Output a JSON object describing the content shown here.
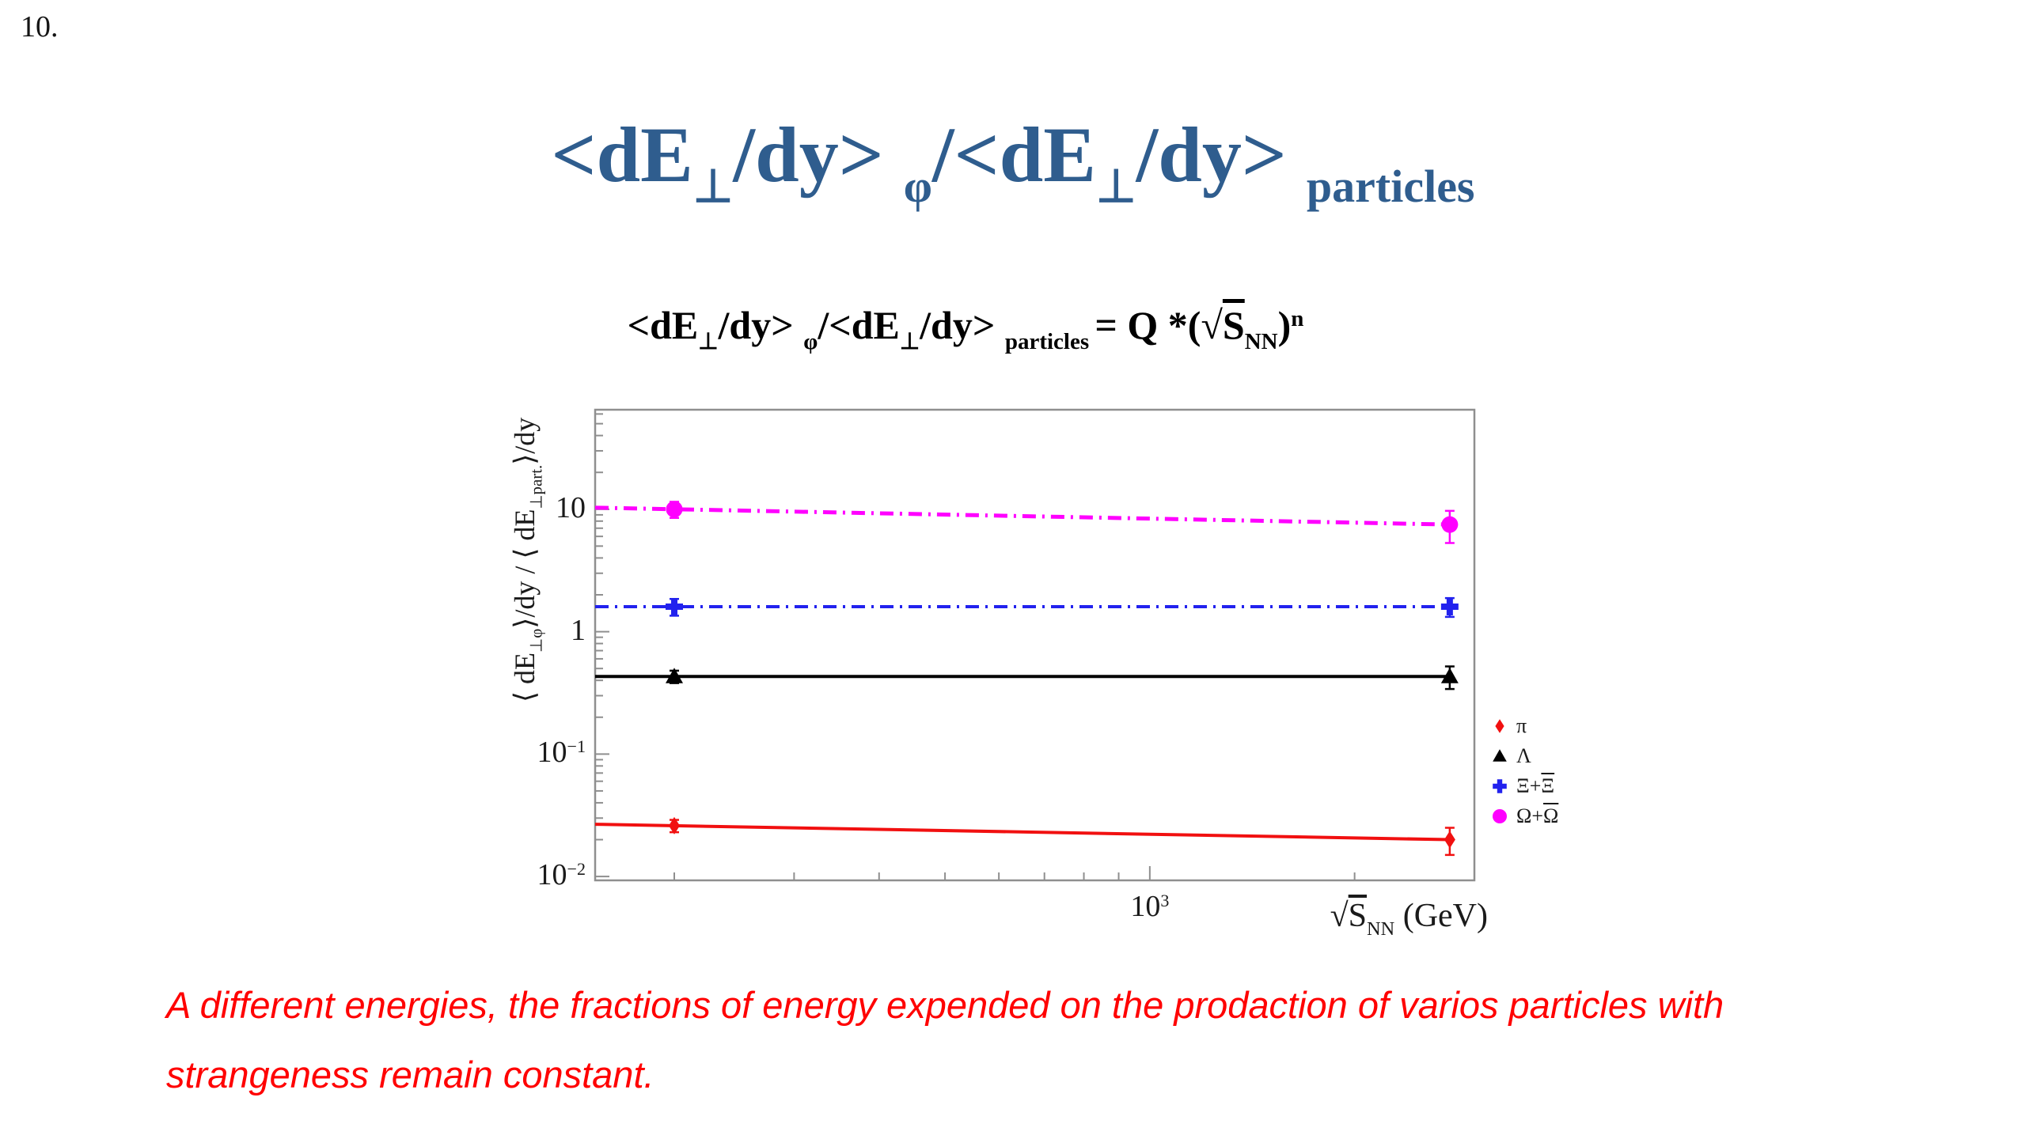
{
  "page": {
    "number": "10.",
    "background": "#ffffff"
  },
  "title": {
    "color": "#2f5d8e",
    "segments": [
      {
        "t": "<dE"
      },
      {
        "t": "⊥",
        "s": "sub"
      },
      {
        "t": "/dy> "
      },
      {
        "t": "φ",
        "s": "sub"
      },
      {
        "t": "/<dE"
      },
      {
        "t": "⊥",
        "s": "sub"
      },
      {
        "t": "/dy> "
      },
      {
        "t": "particles",
        "s": "sub"
      }
    ]
  },
  "formula": {
    "segments": [
      {
        "t": "<dE"
      },
      {
        "t": "⊥",
        "s": "sub"
      },
      {
        "t": "/dy> "
      },
      {
        "t": "φ",
        "s": "sub"
      },
      {
        "t": "/<dE"
      },
      {
        "t": "⊥",
        "s": "sub"
      },
      {
        "t": "/dy> "
      },
      {
        "t": "particles ",
        "s": "sub"
      },
      {
        "t": "= Q *("
      },
      {
        "t": "√"
      },
      {
        "t": "S",
        "s": "ov"
      },
      {
        "t": "NN",
        "s": "sub"
      },
      {
        "t": ")"
      },
      {
        "t": "n",
        "s": "sup"
      }
    ]
  },
  "caption": {
    "color": "#ff0000",
    "lines": [
      "A different energies, the fractions of energy expended on the prodaction of varios particles with",
      "strangeness remain constant."
    ]
  },
  "chart_data": {
    "type": "scatter",
    "x": [
      200,
      2760
    ],
    "xlim": [
      153,
      3000
    ],
    "ylim": [
      0.0093,
      65
    ],
    "x_axis_title_segments": [
      {
        "t": "√"
      },
      {
        "t": "S",
        "s": "ov"
      },
      {
        "t": "NN",
        "s": "sub"
      },
      {
        "t": " (GeV)"
      }
    ],
    "y_axis_title_segments": [
      {
        "t": "⟨ dE"
      },
      {
        "t": "⊥φ",
        "s": "sub"
      },
      {
        "t": "⟩/dy / ⟨ dE"
      },
      {
        "t": "⊥part.",
        "s": "sub"
      },
      {
        "t": "⟩/dy"
      }
    ],
    "x_ticks": [
      {
        "v": 1000,
        "segments": [
          {
            "t": "10"
          },
          {
            "t": "3",
            "s": "sup"
          }
        ]
      }
    ],
    "y_ticks": [
      {
        "v": 10,
        "segments": [
          {
            "t": "10"
          }
        ]
      },
      {
        "v": 1,
        "segments": [
          {
            "t": "1"
          }
        ]
      },
      {
        "v": 0.1,
        "segments": [
          {
            "t": "10"
          },
          {
            "t": "−1",
            "s": "sup"
          }
        ]
      },
      {
        "v": 0.01,
        "segments": [
          {
            "t": "10"
          },
          {
            "t": "−2",
            "s": "sup"
          }
        ]
      }
    ],
    "frame_color": "#8f8f8f",
    "grid": false,
    "legend_position": "outside-right",
    "series": [
      {
        "name": "π",
        "marker": "diamond",
        "color": "#f11010",
        "linestyle": "solid",
        "values": [
          0.026,
          0.02
        ],
        "yerr": [
          0.003,
          0.005
        ],
        "legend_segments": [
          {
            "t": "π"
          }
        ]
      },
      {
        "name": "Λ",
        "marker": "triangle",
        "color": "#000000",
        "linestyle": "solid",
        "values": [
          0.43,
          0.43
        ],
        "yerr": [
          0.05,
          0.09
        ],
        "legend_segments": [
          {
            "t": "Λ"
          }
        ]
      },
      {
        "name": "Ξ+Ξ̄",
        "marker": "cross",
        "color": "#2222ee",
        "linestyle": "dashdot",
        "values": [
          1.6,
          1.6
        ],
        "yerr": [
          0.25,
          0.28
        ],
        "legend_segments": [
          {
            "t": "Ξ+"
          },
          {
            "t": "Ξ",
            "s": "ov"
          }
        ]
      },
      {
        "name": "Ω+Ω̄",
        "marker": "circle",
        "color": "#ff00ff",
        "linestyle": "dashdot",
        "values": [
          10.0,
          7.5
        ],
        "yerr": [
          1.5,
          2.2
        ],
        "legend_segments": [
          {
            "t": "Ω+"
          },
          {
            "t": "Ω",
            "s": "ov"
          }
        ]
      }
    ]
  }
}
